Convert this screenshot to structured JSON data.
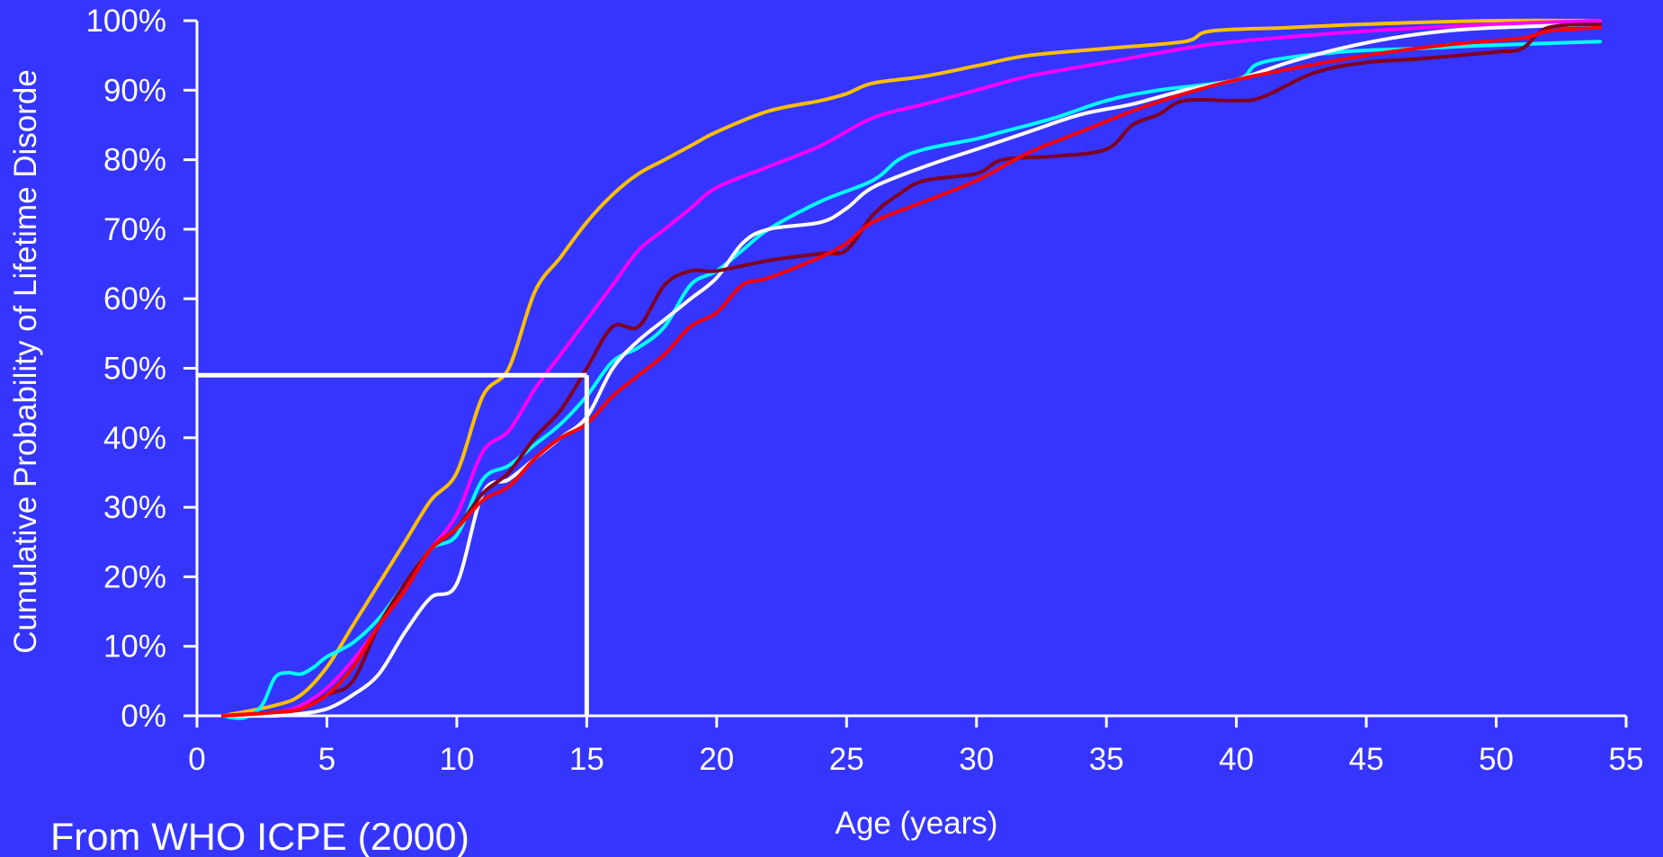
{
  "source_note": "From WHO ICPE (2000)",
  "colors": {
    "background": "#3535ff",
    "axis": "#ffffff",
    "reference": "#ffffff"
  },
  "chart_data": {
    "type": "line",
    "xlabel": "Age (years)",
    "ylabel": "Cumulative Probability of Lifetime Disorde",
    "xlim": [
      0,
      55
    ],
    "ylim": [
      0,
      100
    ],
    "x_ticks": [
      0,
      5,
      10,
      15,
      20,
      25,
      30,
      35,
      40,
      45,
      50,
      55
    ],
    "y_ticks": [
      0,
      10,
      20,
      30,
      40,
      50,
      60,
      70,
      80,
      90,
      100
    ],
    "y_tick_labels": [
      "0%",
      "10%",
      "20%",
      "30%",
      "40%",
      "50%",
      "60%",
      "70%",
      "80%",
      "90%",
      "100%"
    ],
    "reference_lines": {
      "x": 15,
      "y": 49
    },
    "series": [
      {
        "color": "#ffbf00",
        "points": [
          [
            1,
            0
          ],
          [
            3,
            1.5
          ],
          [
            4,
            3
          ],
          [
            5,
            7
          ],
          [
            6,
            13
          ],
          [
            7,
            19
          ],
          [
            8,
            25
          ],
          [
            9,
            31
          ],
          [
            10,
            35
          ],
          [
            11,
            46
          ],
          [
            12,
            50
          ],
          [
            13,
            61
          ],
          [
            14,
            66
          ],
          [
            15,
            71
          ],
          [
            16,
            75
          ],
          [
            17,
            78
          ],
          [
            18,
            80
          ],
          [
            19,
            82
          ],
          [
            20,
            84
          ],
          [
            22,
            87
          ],
          [
            24,
            88.5
          ],
          [
            25,
            89.5
          ],
          [
            26,
            91
          ],
          [
            28,
            92
          ],
          [
            30,
            93.5
          ],
          [
            32,
            95
          ],
          [
            35,
            96
          ],
          [
            38,
            97
          ],
          [
            39,
            98.5
          ],
          [
            42,
            99
          ],
          [
            45,
            99.5
          ],
          [
            50,
            100
          ],
          [
            54,
            100
          ]
        ]
      },
      {
        "color": "#ff00ff",
        "points": [
          [
            1,
            0
          ],
          [
            3,
            0.5
          ],
          [
            4,
            1.5
          ],
          [
            5,
            4
          ],
          [
            6,
            8
          ],
          [
            7,
            13
          ],
          [
            8,
            19
          ],
          [
            9,
            24
          ],
          [
            10,
            29
          ],
          [
            11,
            38
          ],
          [
            12,
            41
          ],
          [
            13,
            47
          ],
          [
            14,
            52
          ],
          [
            15,
            57
          ],
          [
            16,
            62
          ],
          [
            17,
            67
          ],
          [
            18,
            70
          ],
          [
            19,
            73
          ],
          [
            20,
            76
          ],
          [
            22,
            79
          ],
          [
            24,
            82
          ],
          [
            26,
            86
          ],
          [
            28,
            88
          ],
          [
            30,
            90
          ],
          [
            32,
            92
          ],
          [
            35,
            94
          ],
          [
            38,
            96
          ],
          [
            40,
            97
          ],
          [
            45,
            98.5
          ],
          [
            50,
            99.5
          ],
          [
            54,
            100
          ]
        ]
      },
      {
        "color": "#00ffff",
        "points": [
          [
            1,
            0
          ],
          [
            1.8,
            -0.3
          ],
          [
            2.5,
            1.5
          ],
          [
            3,
            5.5
          ],
          [
            3.5,
            6.2
          ],
          [
            4,
            6
          ],
          [
            4.5,
            7
          ],
          [
            5,
            8.5
          ],
          [
            6,
            10.5
          ],
          [
            7,
            14
          ],
          [
            8,
            19
          ],
          [
            9,
            24
          ],
          [
            10,
            26
          ],
          [
            11,
            34
          ],
          [
            12,
            36
          ],
          [
            13,
            39
          ],
          [
            14,
            42
          ],
          [
            15,
            46
          ],
          [
            16,
            51
          ],
          [
            17,
            53
          ],
          [
            18,
            56
          ],
          [
            19,
            62
          ],
          [
            20,
            64
          ],
          [
            21,
            67
          ],
          [
            22,
            70
          ],
          [
            24,
            74
          ],
          [
            26,
            77
          ],
          [
            27,
            80
          ],
          [
            28,
            81.5
          ],
          [
            30,
            83
          ],
          [
            31,
            84
          ],
          [
            33,
            86
          ],
          [
            35,
            88.5
          ],
          [
            37,
            90
          ],
          [
            40,
            91.5
          ],
          [
            41,
            94
          ],
          [
            44,
            95.5
          ],
          [
            47,
            96
          ],
          [
            50,
            96.5
          ],
          [
            54,
            97
          ]
        ]
      },
      {
        "color": "#ffffff",
        "points": [
          [
            1,
            0
          ],
          [
            3,
            0
          ],
          [
            4,
            0.3
          ],
          [
            5,
            1
          ],
          [
            6,
            3
          ],
          [
            7,
            6
          ],
          [
            8,
            12
          ],
          [
            9,
            17
          ],
          [
            10,
            19
          ],
          [
            11,
            32
          ],
          [
            12,
            34
          ],
          [
            13,
            37
          ],
          [
            14,
            40
          ],
          [
            15,
            43
          ],
          [
            16,
            50
          ],
          [
            17,
            54
          ],
          [
            18,
            57
          ],
          [
            19,
            60
          ],
          [
            20,
            63
          ],
          [
            21,
            68
          ],
          [
            22,
            70
          ],
          [
            24,
            71
          ],
          [
            25,
            73
          ],
          [
            26,
            76
          ],
          [
            28,
            79
          ],
          [
            30,
            81.5
          ],
          [
            32,
            84
          ],
          [
            34,
            86.5
          ],
          [
            36,
            88
          ],
          [
            38,
            90
          ],
          [
            40,
            91.5
          ],
          [
            42,
            94
          ],
          [
            44,
            96
          ],
          [
            46,
            97.5
          ],
          [
            48,
            98.5
          ],
          [
            50,
            99
          ],
          [
            54,
            99.5
          ]
        ]
      },
      {
        "color": "#800020",
        "points": [
          [
            1,
            0
          ],
          [
            3,
            0.5
          ],
          [
            4,
            1
          ],
          [
            5,
            3
          ],
          [
            6,
            5
          ],
          [
            7,
            13
          ],
          [
            8,
            19
          ],
          [
            9,
            24
          ],
          [
            10,
            27
          ],
          [
            11,
            32
          ],
          [
            12,
            35
          ],
          [
            13,
            40
          ],
          [
            14,
            44
          ],
          [
            15,
            50
          ],
          [
            16,
            56
          ],
          [
            17,
            56
          ],
          [
            18,
            62
          ],
          [
            19,
            64
          ],
          [
            20,
            64
          ],
          [
            22,
            65.5
          ],
          [
            24,
            66.5
          ],
          [
            25,
            67
          ],
          [
            26,
            72
          ],
          [
            27,
            75
          ],
          [
            28,
            77
          ],
          [
            30,
            78
          ],
          [
            31,
            80
          ],
          [
            33,
            80.5
          ],
          [
            35,
            81.5
          ],
          [
            36,
            85
          ],
          [
            37,
            86.5
          ],
          [
            38,
            88.5
          ],
          [
            40,
            88.5
          ],
          [
            41,
            89
          ],
          [
            43,
            92.5
          ],
          [
            45,
            94
          ],
          [
            47,
            94.5
          ],
          [
            50,
            95.5
          ],
          [
            51,
            96
          ],
          [
            52,
            99
          ],
          [
            54,
            99.5
          ]
        ]
      },
      {
        "color": "#ff0000",
        "points": [
          [
            1,
            0
          ],
          [
            3,
            0.5
          ],
          [
            4,
            1
          ],
          [
            5,
            3
          ],
          [
            6,
            7
          ],
          [
            7,
            13
          ],
          [
            8,
            18
          ],
          [
            9,
            24
          ],
          [
            10,
            27
          ],
          [
            11,
            31
          ],
          [
            12,
            33
          ],
          [
            13,
            37
          ],
          [
            14,
            40
          ],
          [
            15,
            42
          ],
          [
            16,
            46
          ],
          [
            17,
            49
          ],
          [
            18,
            52
          ],
          [
            19,
            56
          ],
          [
            20,
            58
          ],
          [
            21,
            62
          ],
          [
            22,
            63
          ],
          [
            24,
            66
          ],
          [
            25,
            68
          ],
          [
            26,
            71
          ],
          [
            28,
            74
          ],
          [
            30,
            77
          ],
          [
            32,
            81
          ],
          [
            34,
            84
          ],
          [
            36,
            87
          ],
          [
            38,
            89.5
          ],
          [
            40,
            91.5
          ],
          [
            42,
            93
          ],
          [
            45,
            95
          ],
          [
            48,
            96.5
          ],
          [
            51,
            97.5
          ],
          [
            52,
            98.5
          ],
          [
            54,
            99
          ]
        ]
      }
    ]
  }
}
